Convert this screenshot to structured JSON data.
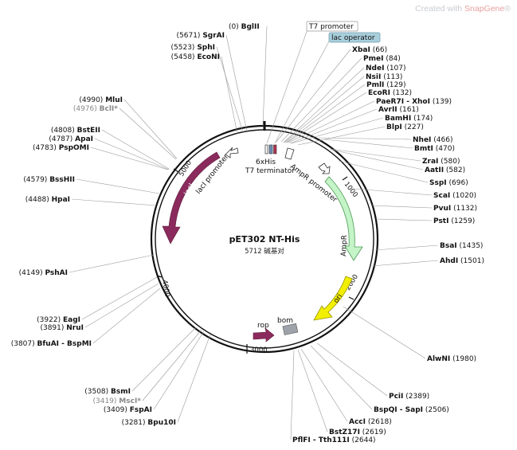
{
  "watermark": {
    "prefix": "Created with ",
    "brand": "SnapGene",
    "suffix": "®"
  },
  "plasmid": {
    "name": "pET302 NT-His",
    "length": "5712",
    "unit": "碱基对"
  },
  "ticks": [
    "1000",
    "2000",
    "3000",
    "4000",
    "5000"
  ],
  "features": {
    "lacI": "lacI",
    "lacI_promoter": "lacI promoter",
    "his": "6xHis",
    "t7term": "T7 terminator",
    "ampr_promoter": "AmpR promoter",
    "ampr": "AmpR",
    "ori": "ori",
    "rop": "rop",
    "bom": "bom"
  },
  "boxes": {
    "t7_promoter": "T7 promoter",
    "lac_operator": "lac operator"
  },
  "sites_right": [
    {
      "name": "XbaI",
      "pos": "(66)"
    },
    {
      "name": "PmeI",
      "pos": "(84)"
    },
    {
      "name": "NdeI",
      "pos": "(107)"
    },
    {
      "name": "NsiI",
      "pos": "(113)"
    },
    {
      "name": "PmlI",
      "pos": "(129)"
    },
    {
      "name": "EcoRI",
      "pos": "(132)"
    },
    {
      "name": "PaeR7I - XhoI",
      "pos": "(139)"
    },
    {
      "name": "AvrII",
      "pos": "(161)"
    },
    {
      "name": "BamHI",
      "pos": "(174)"
    },
    {
      "name": "BlpI",
      "pos": "(227)"
    },
    {
      "name": "NheI",
      "pos": "(466)"
    },
    {
      "name": "BmtI",
      "pos": "(470)"
    },
    {
      "name": "ZraI",
      "pos": "(580)"
    },
    {
      "name": "AatII",
      "pos": "(582)"
    },
    {
      "name": "SspI",
      "pos": "(696)"
    },
    {
      "name": "ScaI",
      "pos": "(1020)"
    },
    {
      "name": "PvuI",
      "pos": "(1132)"
    },
    {
      "name": "PstI",
      "pos": "(1259)"
    },
    {
      "name": "BsaI",
      "pos": "(1435)"
    },
    {
      "name": "AhdI",
      "pos": "(1501)"
    },
    {
      "name": "AlwNI",
      "pos": "(1980)"
    },
    {
      "name": "PciI",
      "pos": "(2389)"
    },
    {
      "name": "BspQI - SapI",
      "pos": "(2506)"
    },
    {
      "name": "AccI",
      "pos": "(2618)"
    },
    {
      "name": "BstZ17I",
      "pos": "(2619)"
    },
    {
      "name": "PflFI - Tth111I",
      "pos": "(2644)"
    }
  ],
  "sites_left": [
    {
      "name": "BglII",
      "pos": "(0)"
    },
    {
      "name": "SgrAI",
      "pos": "(5671)"
    },
    {
      "name": "SphI",
      "pos": "(5523)"
    },
    {
      "name": "EcoNI",
      "pos": "(5458)"
    },
    {
      "name": "MluI",
      "pos": "(4990)"
    },
    {
      "name": "BclI*",
      "pos": "(4976)"
    },
    {
      "name": "BstEII",
      "pos": "(4808)"
    },
    {
      "name": "ApaI",
      "pos": "(4787)"
    },
    {
      "name": "PspOMI",
      "pos": "(4783)"
    },
    {
      "name": "BssHII",
      "pos": "(4579)"
    },
    {
      "name": "HpaI",
      "pos": "(4488)"
    },
    {
      "name": "PshAI",
      "pos": "(4149)"
    },
    {
      "name": "EagI",
      "pos": "(3922)"
    },
    {
      "name": "NruI",
      "pos": "(3891)"
    },
    {
      "name": "BfuAI - BspMI",
      "pos": "(3807)"
    },
    {
      "name": "BsmI",
      "pos": "(3508)"
    },
    {
      "name": "MscI*",
      "pos": "(3419)"
    },
    {
      "name": "FspAI",
      "pos": "(3409)"
    },
    {
      "name": "Bpu10I",
      "pos": "(3281)"
    }
  ],
  "colors": {
    "lacI": "#8b2a5c",
    "ampr": "#c5f4c8",
    "ori": "#f2ee00",
    "rop": "#8b2a5c",
    "bom": "#9ea3aa",
    "lac_operator": "#a9cfdc"
  }
}
